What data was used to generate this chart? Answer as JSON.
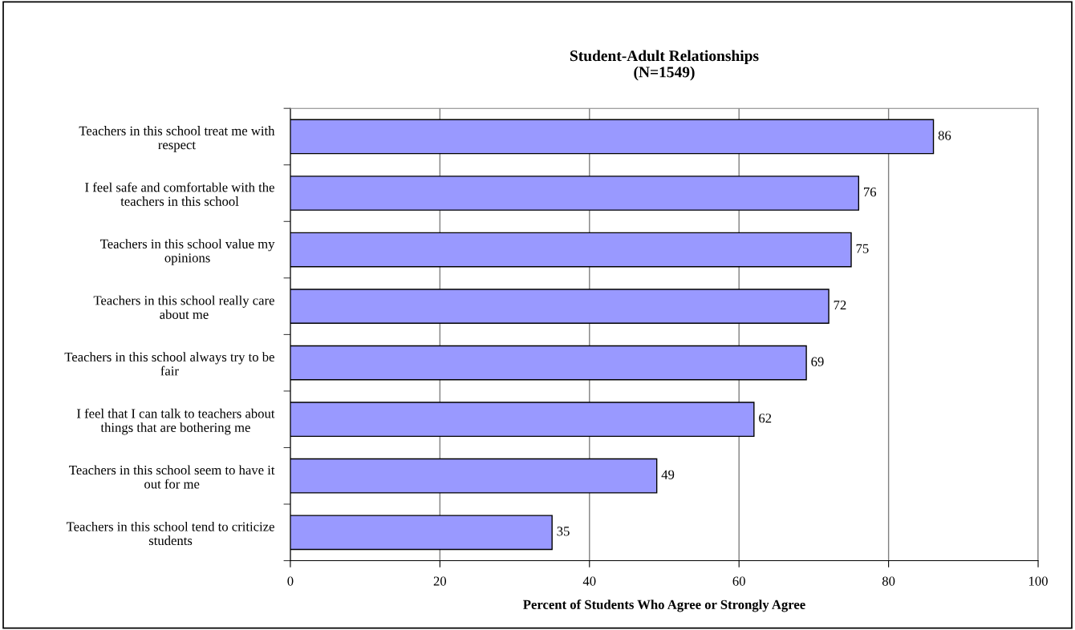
{
  "chart_data": {
    "type": "bar",
    "orientation": "horizontal",
    "title": "Student-Adult Relationships\n(N=1549)",
    "xlabel": "Percent of Students Who Agree or Strongly Agree",
    "categories": [
      "Teachers in this school treat me with\nrespect",
      "I feel safe and comfortable with the\nteachers in this school",
      "Teachers in this school value my\nopinions",
      "Teachers in this school really care\nabout me",
      "Teachers in this school always try to be\nfair",
      "I feel that I can talk to teachers about\nthings that are bothering me",
      "Teachers in this school seem to have it\nout for me",
      "Teachers in this school tend to criticize\nstudents"
    ],
    "values": [
      86,
      76,
      75,
      72,
      69,
      62,
      49,
      35
    ],
    "color": "#9999ff",
    "xlim": [
      0,
      100
    ],
    "xticks": [
      0,
      20,
      40,
      60,
      80,
      100
    ],
    "grid": "x",
    "data_labels": true,
    "legend": false
  }
}
